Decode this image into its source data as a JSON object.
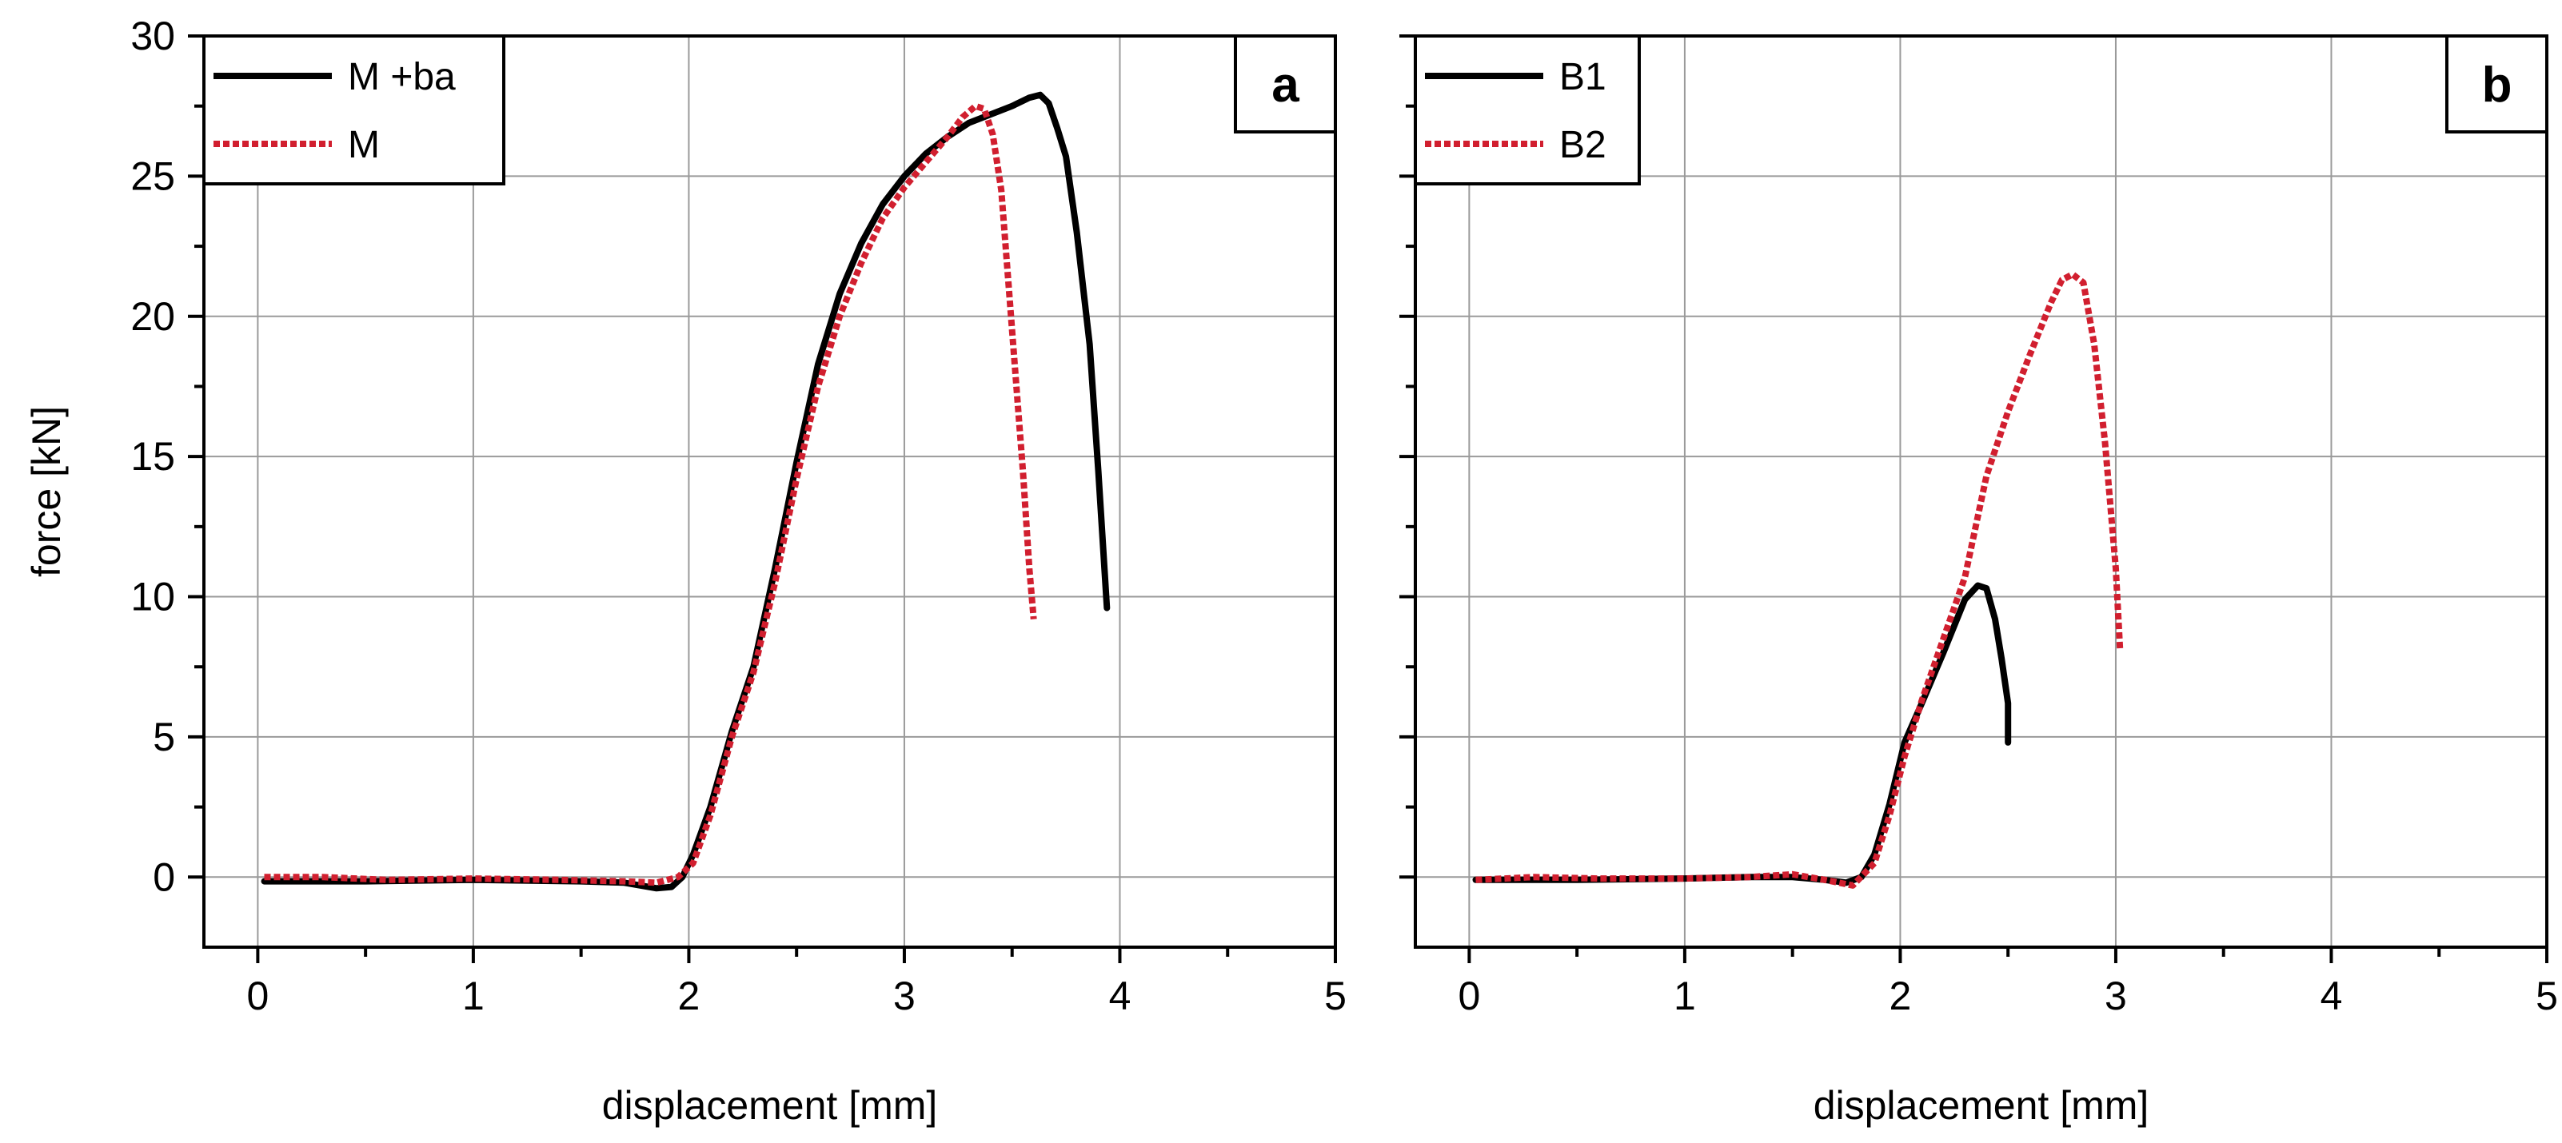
{
  "chart_data": [
    {
      "type": "line",
      "panel_label": "a",
      "xlabel": "displacement [mm]",
      "ylabel": "force [kN]",
      "xlim": [
        -0.25,
        5.0
      ],
      "ylim": [
        -2.5,
        30
      ],
      "xticks": [
        0,
        1,
        2,
        3,
        4,
        5
      ],
      "yticks": [
        0,
        5,
        10,
        15,
        20,
        25,
        30
      ],
      "grid": true,
      "legend_position": "top-left",
      "series": [
        {
          "name": "M +ba",
          "color": "#000000",
          "style": "solid",
          "x": [
            0.03,
            0.5,
            1.0,
            1.5,
            1.7,
            1.85,
            1.92,
            1.97,
            2.02,
            2.1,
            2.2,
            2.3,
            2.4,
            2.5,
            2.6,
            2.7,
            2.8,
            2.9,
            3.0,
            3.1,
            3.2,
            3.3,
            3.4,
            3.5,
            3.58,
            3.63,
            3.67,
            3.71,
            3.75,
            3.8,
            3.86,
            3.9,
            3.94
          ],
          "y": [
            -0.15,
            -0.15,
            -0.1,
            -0.15,
            -0.2,
            -0.4,
            -0.35,
            0.0,
            0.8,
            2.5,
            5.2,
            7.5,
            11.0,
            14.8,
            18.3,
            20.8,
            22.6,
            24.0,
            25.0,
            25.8,
            26.4,
            26.9,
            27.2,
            27.5,
            27.8,
            27.9,
            27.6,
            26.7,
            25.7,
            23.0,
            19.0,
            14.5,
            9.6
          ]
        },
        {
          "name": "M",
          "color": "#d11f2f",
          "style": "dotted",
          "x": [
            0.03,
            0.3,
            0.6,
            1.0,
            1.4,
            1.7,
            1.85,
            1.95,
            2.02,
            2.1,
            2.2,
            2.3,
            2.4,
            2.5,
            2.6,
            2.7,
            2.8,
            2.9,
            3.0,
            3.1,
            3.2,
            3.27,
            3.33,
            3.37,
            3.41,
            3.45,
            3.5,
            3.55,
            3.58,
            3.6
          ],
          "y": [
            0.0,
            0.0,
            -0.1,
            -0.05,
            -0.1,
            -0.15,
            -0.2,
            0.0,
            0.5,
            2.2,
            5.0,
            7.3,
            10.5,
            14.2,
            17.5,
            20.0,
            21.9,
            23.5,
            24.6,
            25.5,
            26.4,
            27.1,
            27.5,
            27.4,
            26.5,
            24.5,
            19.5,
            14.5,
            11.0,
            9.2
          ]
        }
      ]
    },
    {
      "type": "line",
      "panel_label": "b",
      "xlabel": "displacement [mm]",
      "ylabel": "",
      "xlim": [
        -0.25,
        5.0
      ],
      "ylim": [
        -2.5,
        30
      ],
      "xticks": [
        0,
        1,
        2,
        3,
        4,
        5
      ],
      "yticks": [
        0,
        5,
        10,
        15,
        20,
        25,
        30
      ],
      "grid": true,
      "legend_position": "top-left",
      "series": [
        {
          "name": "B1",
          "color": "#000000",
          "style": "solid",
          "x": [
            0.03,
            0.5,
            1.0,
            1.3,
            1.5,
            1.65,
            1.75,
            1.82,
            1.88,
            1.95,
            2.02,
            2.1,
            2.2,
            2.3,
            2.36,
            2.4,
            2.44,
            2.47,
            2.5,
            2.5
          ],
          "y": [
            -0.1,
            -0.1,
            -0.05,
            0.0,
            0.0,
            -0.1,
            -0.2,
            0.0,
            0.8,
            2.6,
            4.8,
            6.2,
            8.0,
            9.9,
            10.4,
            10.3,
            9.2,
            7.8,
            6.2,
            4.8
          ]
        },
        {
          "name": "B2",
          "color": "#d11f2f",
          "style": "dotted",
          "x": [
            0.03,
            0.3,
            0.6,
            1.0,
            1.3,
            1.5,
            1.65,
            1.78,
            1.88,
            1.95,
            2.02,
            2.1,
            2.2,
            2.3,
            2.4,
            2.5,
            2.6,
            2.7,
            2.75,
            2.8,
            2.85,
            2.9,
            2.95,
            3.0,
            3.02
          ],
          "y": [
            -0.1,
            0.0,
            -0.05,
            -0.05,
            0.0,
            0.1,
            -0.1,
            -0.3,
            0.5,
            2.2,
            4.3,
            6.3,
            8.5,
            10.7,
            14.3,
            16.6,
            18.6,
            20.5,
            21.3,
            21.5,
            21.2,
            19.0,
            15.5,
            11.0,
            8.1
          ]
        }
      ]
    }
  ]
}
